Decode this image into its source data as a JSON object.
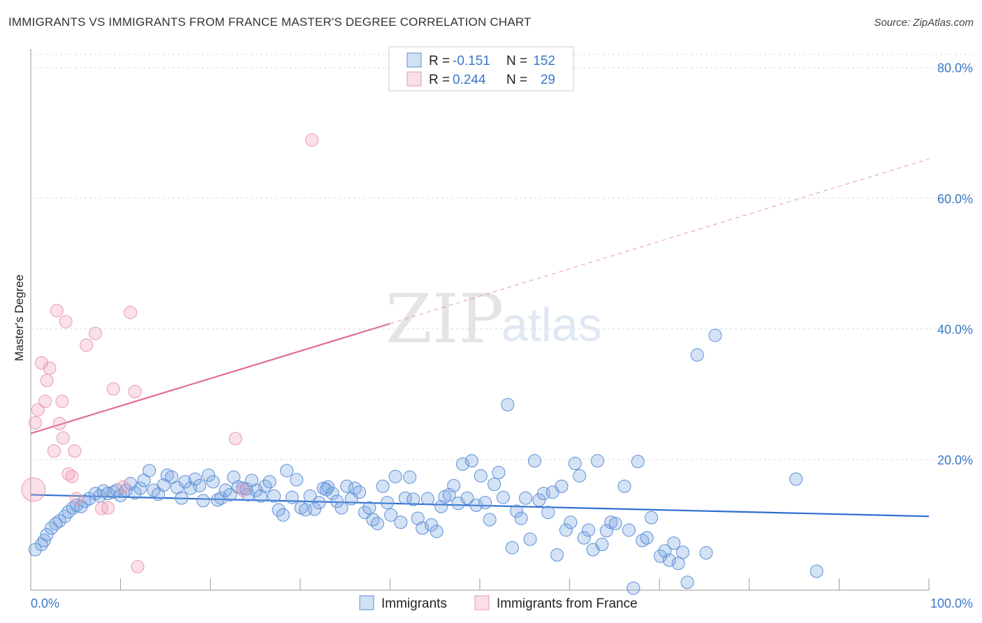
{
  "title": "IMMIGRANTS VS IMMIGRANTS FROM FRANCE MASTER'S DEGREE CORRELATION CHART",
  "source": "Source: ZipAtlas.com",
  "watermark": {
    "zip": "ZIP",
    "atlas": "atlas"
  },
  "colors": {
    "blue": "#3a78c8",
    "blue_line": "#2e6fd0",
    "pink_line": "#e06d95",
    "pink": "#f2a7bf"
  },
  "legend": {
    "r_label": "R =",
    "n_label": "N =",
    "series": [
      {
        "name": "Immigrants",
        "r": "-0.151",
        "n": "152"
      },
      {
        "name": "Immigrants from France",
        "r": "0.244",
        "n": "29"
      }
    ]
  },
  "chart_data": {
    "type": "scatter",
    "title": "IMMIGRANTS VS IMMIGRANTS FROM FRANCE MASTER'S DEGREE CORRELATION CHART",
    "xlabel": "",
    "ylabel": "Master's Degree",
    "xlim": [
      0,
      100
    ],
    "ylim": [
      0,
      82
    ],
    "x_tick_labels": [
      "0.0%",
      "100.0%"
    ],
    "y_ticks": [
      20,
      40,
      60,
      80
    ],
    "y_tick_labels": [
      "20.0%",
      "40.0%",
      "60.0%",
      "80.0%"
    ],
    "grid": true,
    "series": [
      {
        "name": "Immigrants",
        "color": "#5b8fd6",
        "trend": {
          "x0": 0,
          "y0": 14.6,
          "x1": 100,
          "y1": 11.3
        },
        "points": [
          [
            0.5,
            6.2
          ],
          [
            1.2,
            7.0
          ],
          [
            1.5,
            7.6
          ],
          [
            1.8,
            8.5
          ],
          [
            2.3,
            9.5
          ],
          [
            2.8,
            10.2
          ],
          [
            3.2,
            10.6
          ],
          [
            3.8,
            11.3
          ],
          [
            4.2,
            12.0
          ],
          [
            4.7,
            12.6
          ],
          [
            5.1,
            13.0
          ],
          [
            5.6,
            12.8
          ],
          [
            6.0,
            13.6
          ],
          [
            6.5,
            14.0
          ],
          [
            7.2,
            14.8
          ],
          [
            7.7,
            14.4
          ],
          [
            8.1,
            15.2
          ],
          [
            8.6,
            14.8
          ],
          [
            9.2,
            15.0
          ],
          [
            9.6,
            15.3
          ],
          [
            10.0,
            14.5
          ],
          [
            10.6,
            15.3
          ],
          [
            11.1,
            16.3
          ],
          [
            11.6,
            14.9
          ],
          [
            12.2,
            15.6
          ],
          [
            12.6,
            16.8
          ],
          [
            13.2,
            18.3
          ],
          [
            13.7,
            15.3
          ],
          [
            14.2,
            14.7
          ],
          [
            14.8,
            16.1
          ],
          [
            15.2,
            17.6
          ],
          [
            15.7,
            17.3
          ],
          [
            16.3,
            15.7
          ],
          [
            16.8,
            14.1
          ],
          [
            17.2,
            16.6
          ],
          [
            17.8,
            15.6
          ],
          [
            18.3,
            17.0
          ],
          [
            18.8,
            16.0
          ],
          [
            19.2,
            13.7
          ],
          [
            19.8,
            17.6
          ],
          [
            20.3,
            16.6
          ],
          [
            20.8,
            13.8
          ],
          [
            21.2,
            14.1
          ],
          [
            21.7,
            15.3
          ],
          [
            22.2,
            14.6
          ],
          [
            22.6,
            17.3
          ],
          [
            23.1,
            15.8
          ],
          [
            23.6,
            15.6
          ],
          [
            24.2,
            14.6
          ],
          [
            24.6,
            16.8
          ],
          [
            25.1,
            15.3
          ],
          [
            25.6,
            14.4
          ],
          [
            26.1,
            15.9
          ],
          [
            26.6,
            16.6
          ],
          [
            27.1,
            14.4
          ],
          [
            27.6,
            12.3
          ],
          [
            28.1,
            11.5
          ],
          [
            28.5,
            18.3
          ],
          [
            29.1,
            14.2
          ],
          [
            29.6,
            16.9
          ],
          [
            30.1,
            12.6
          ],
          [
            30.6,
            12.3
          ],
          [
            31.1,
            14.4
          ],
          [
            31.6,
            12.4
          ],
          [
            32.1,
            13.4
          ],
          [
            32.6,
            15.6
          ],
          [
            33.1,
            15.8
          ],
          [
            33.6,
            14.8
          ],
          [
            34.1,
            13.6
          ],
          [
            34.6,
            12.6
          ],
          [
            35.2,
            15.9
          ],
          [
            35.7,
            14.0
          ],
          [
            36.1,
            15.6
          ],
          [
            36.6,
            15.0
          ],
          [
            37.2,
            11.9
          ],
          [
            37.7,
            12.6
          ],
          [
            38.1,
            10.8
          ],
          [
            38.6,
            10.2
          ],
          [
            39.2,
            15.9
          ],
          [
            39.7,
            13.4
          ],
          [
            40.1,
            11.5
          ],
          [
            40.6,
            17.4
          ],
          [
            41.2,
            10.4
          ],
          [
            41.7,
            14.1
          ],
          [
            42.2,
            17.3
          ],
          [
            42.6,
            13.9
          ],
          [
            43.1,
            11.0
          ],
          [
            43.6,
            9.5
          ],
          [
            44.2,
            14.0
          ],
          [
            44.6,
            10.0
          ],
          [
            45.2,
            9.0
          ],
          [
            45.7,
            12.8
          ],
          [
            46.1,
            14.3
          ],
          [
            46.6,
            14.6
          ],
          [
            47.1,
            16.0
          ],
          [
            47.6,
            13.3
          ],
          [
            48.1,
            19.3
          ],
          [
            48.6,
            14.1
          ],
          [
            49.1,
            19.8
          ],
          [
            49.6,
            13.0
          ],
          [
            50.1,
            17.5
          ],
          [
            50.6,
            13.4
          ],
          [
            51.1,
            10.8
          ],
          [
            51.6,
            16.2
          ],
          [
            52.1,
            18.0
          ],
          [
            52.6,
            14.2
          ],
          [
            53.1,
            28.4
          ],
          [
            53.6,
            6.5
          ],
          [
            54.1,
            12.1
          ],
          [
            54.6,
            11.0
          ],
          [
            55.1,
            14.1
          ],
          [
            55.6,
            7.8
          ],
          [
            56.1,
            19.8
          ],
          [
            56.6,
            13.8
          ],
          [
            57.1,
            14.8
          ],
          [
            57.6,
            11.9
          ],
          [
            58.1,
            15.0
          ],
          [
            58.6,
            5.4
          ],
          [
            59.1,
            15.9
          ],
          [
            59.6,
            9.2
          ],
          [
            60.1,
            10.4
          ],
          [
            60.6,
            19.4
          ],
          [
            61.1,
            17.5
          ],
          [
            61.6,
            8.0
          ],
          [
            62.1,
            9.2
          ],
          [
            62.6,
            6.2
          ],
          [
            63.1,
            19.8
          ],
          [
            63.6,
            7.0
          ],
          [
            64.1,
            9.1
          ],
          [
            64.6,
            10.4
          ],
          [
            65.1,
            10.2
          ],
          [
            66.1,
            15.9
          ],
          [
            66.6,
            9.2
          ],
          [
            67.1,
            0.3
          ],
          [
            67.6,
            19.7
          ],
          [
            68.1,
            7.6
          ],
          [
            68.6,
            8.0
          ],
          [
            69.1,
            11.1
          ],
          [
            70.1,
            5.2
          ],
          [
            70.6,
            6.0
          ],
          [
            71.1,
            4.6
          ],
          [
            71.6,
            7.2
          ],
          [
            72.1,
            4.1
          ],
          [
            72.6,
            5.8
          ],
          [
            73.1,
            1.2
          ],
          [
            74.2,
            36.0
          ],
          [
            75.2,
            5.7
          ],
          [
            76.2,
            39.0
          ],
          [
            85.2,
            17.0
          ],
          [
            87.5,
            2.9
          ],
          [
            32.9,
            15.4
          ],
          [
            24.0,
            15.5
          ]
        ]
      },
      {
        "name": "Immigrants from France",
        "color": "#e99ab3",
        "trend": {
          "x0": 0,
          "y0": 24.0,
          "x1": 40,
          "y1": 40.8,
          "dashed_to_x": 100,
          "dashed_to_y": 66.0
        },
        "points": [
          [
            0.3,
            15.4
          ],
          [
            0.5,
            25.6
          ],
          [
            0.8,
            27.6
          ],
          [
            1.2,
            34.8
          ],
          [
            1.6,
            28.9
          ],
          [
            1.8,
            32.1
          ],
          [
            2.1,
            34.0
          ],
          [
            2.6,
            21.3
          ],
          [
            2.9,
            42.8
          ],
          [
            3.2,
            25.5
          ],
          [
            3.5,
            28.9
          ],
          [
            3.6,
            23.3
          ],
          [
            3.9,
            41.1
          ],
          [
            4.2,
            17.8
          ],
          [
            4.6,
            17.4
          ],
          [
            4.9,
            21.3
          ],
          [
            5.1,
            14.0
          ],
          [
            6.2,
            37.5
          ],
          [
            7.2,
            39.3
          ],
          [
            7.9,
            12.5
          ],
          [
            8.6,
            12.6
          ],
          [
            9.2,
            30.8
          ],
          [
            10.3,
            15.8
          ],
          [
            11.1,
            42.5
          ],
          [
            11.6,
            30.4
          ],
          [
            11.9,
            3.6
          ],
          [
            22.8,
            23.2
          ],
          [
            23.6,
            15.3
          ],
          [
            31.3,
            68.9
          ]
        ]
      }
    ]
  }
}
